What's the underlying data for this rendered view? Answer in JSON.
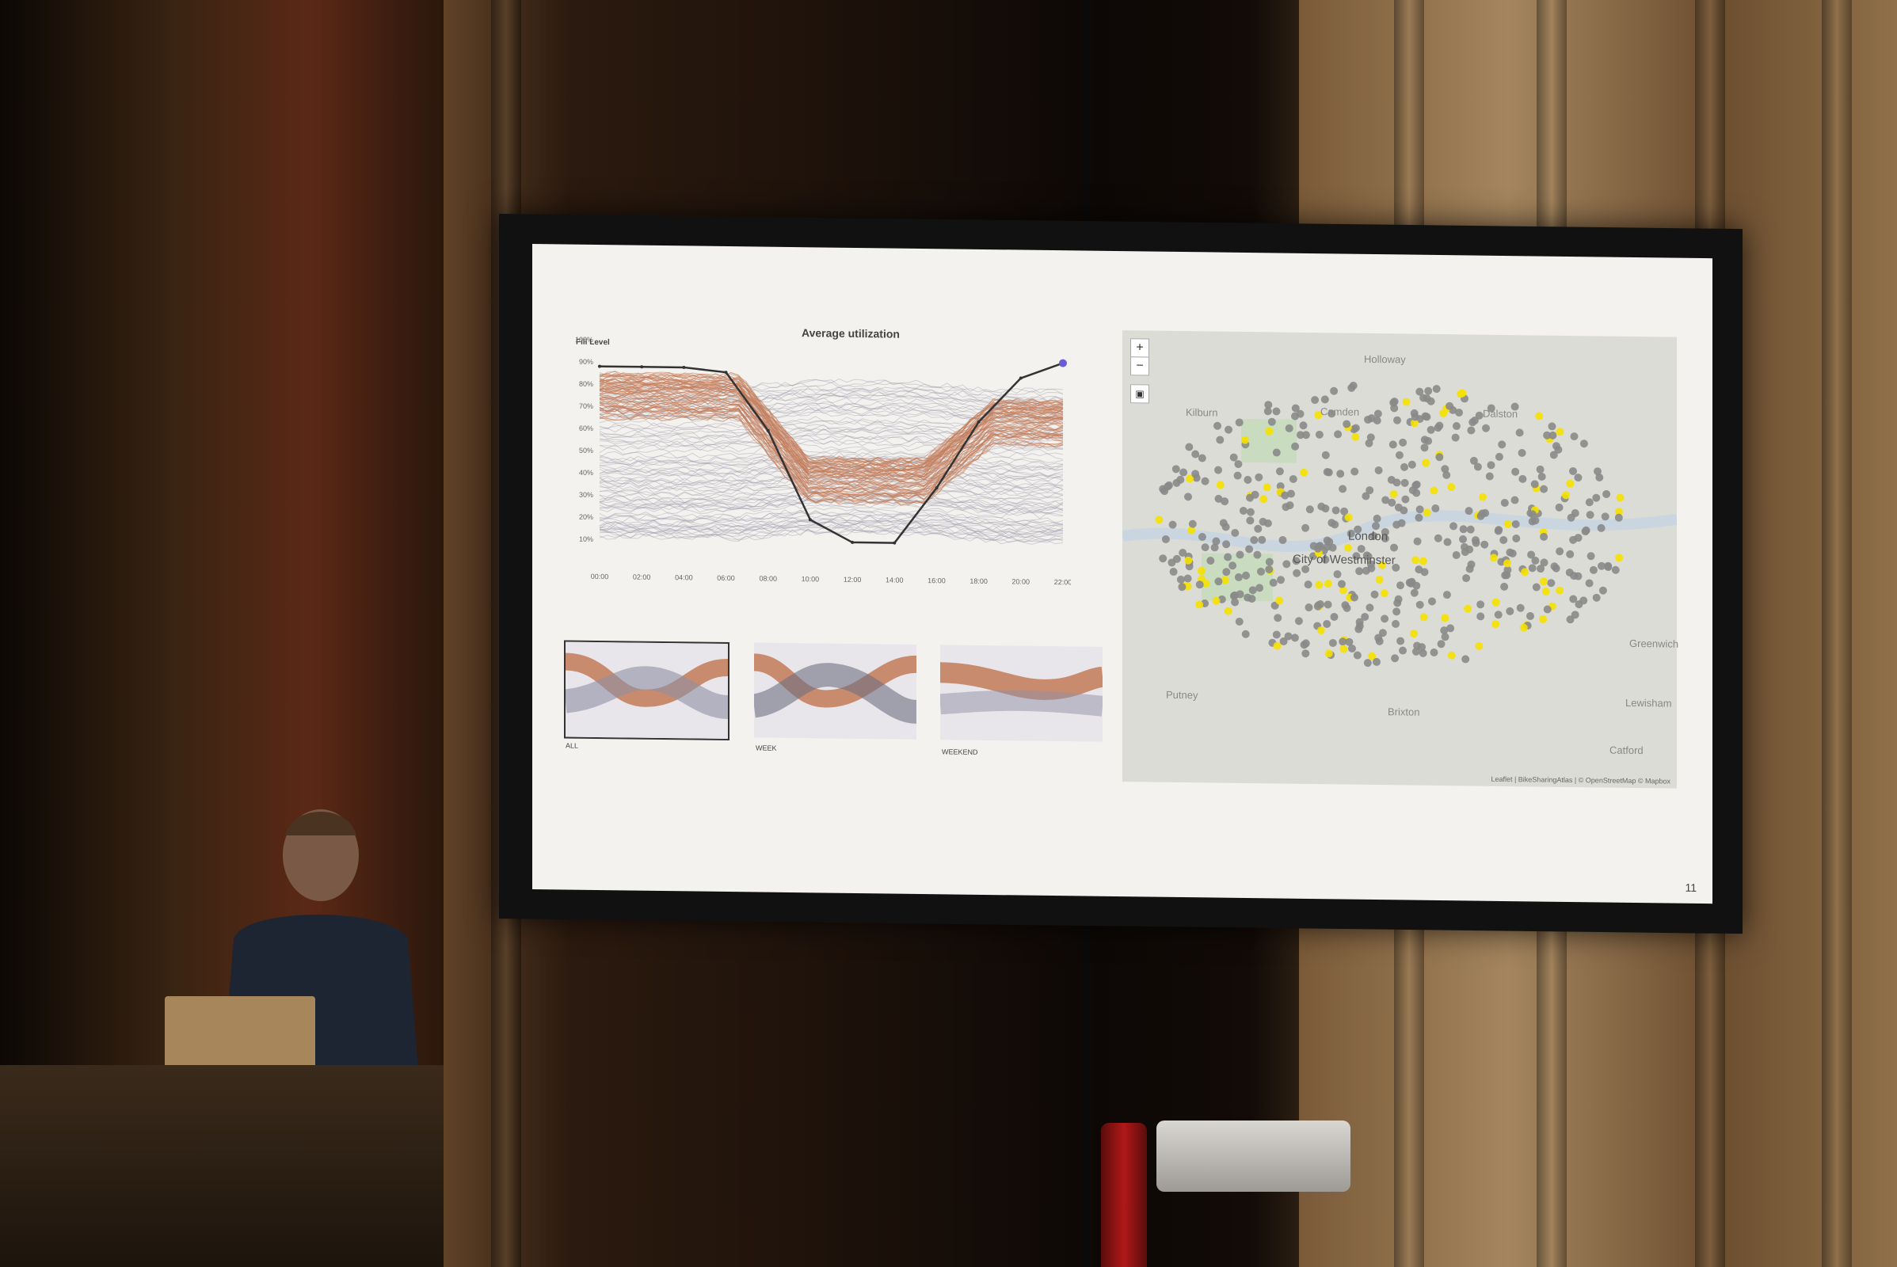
{
  "slide": {
    "chart_title": "Average utilization",
    "y_axis_label": "Fill Level",
    "y_ticks": [
      "100%",
      "90%",
      "80%",
      "70%",
      "60%",
      "50%",
      "40%",
      "30%",
      "20%",
      "10%"
    ],
    "x_ticks": [
      "00:00",
      "02:00",
      "04:00",
      "06:00",
      "08:00",
      "10:00",
      "12:00",
      "14:00",
      "16:00",
      "18:00",
      "20:00",
      "22:00"
    ],
    "mini_labels": [
      "ALL",
      "WEEK",
      "WEEKEND"
    ],
    "slide_number": "11",
    "map": {
      "zoom_in": "+",
      "zoom_out": "−",
      "places": [
        "Holloway",
        "Kilburn",
        "Camden",
        "Dalston",
        "London",
        "City of Westminster",
        "Brixton",
        "Lewisham",
        "Catford",
        "Putney",
        "Greenwich"
      ],
      "attribution": "Leaflet | BikeSharingAtlas | © OpenStreetMap © Mapbox"
    }
  },
  "chart_data": {
    "type": "line",
    "title": "Average utilization",
    "ylabel": "Fill Level",
    "ylim": [
      0,
      100
    ],
    "x": [
      "00:00",
      "02:00",
      "04:00",
      "06:00",
      "08:00",
      "10:00",
      "12:00",
      "14:00",
      "16:00",
      "18:00",
      "20:00",
      "22:00"
    ],
    "series": [
      {
        "values": [
          88,
          88,
          88,
          86,
          60,
          20,
          10,
          10,
          35,
          65,
          85,
          92
        ]
      }
    ]
  },
  "colors": {
    "bundle": "#c27a58",
    "gray_lines": "#8f8fa4",
    "highlight_line": "#333333",
    "dot_gray": "#8a8a8a",
    "dot_yellow": "#f5e100"
  }
}
